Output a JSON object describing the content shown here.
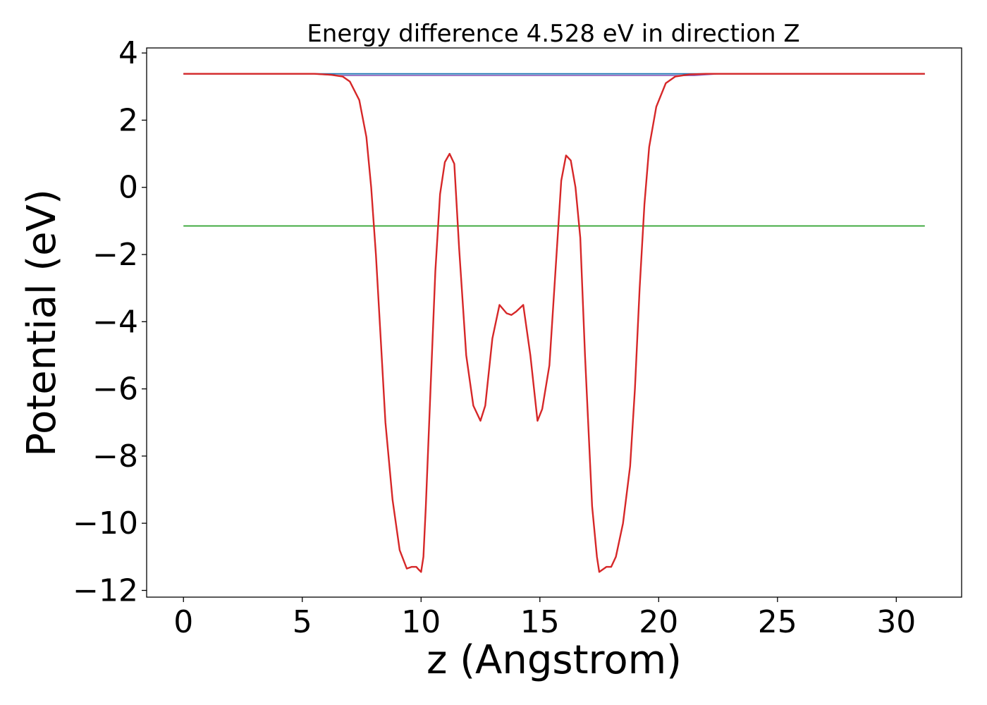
{
  "chart_data": {
    "type": "line",
    "title": "Energy difference 4.528 eV in direction Z",
    "xlabel": "z (Angstrom)",
    "ylabel": "Potential (eV)",
    "xlim": [
      -1.55,
      32.75
    ],
    "ylim": [
      -12.2,
      4.15
    ],
    "xticks": [
      0,
      5,
      10,
      15,
      20,
      25,
      30
    ],
    "yticks": [
      4,
      2,
      0,
      -2,
      -4,
      -6,
      -8,
      -10,
      -12
    ],
    "xtick_labels": [
      "0",
      "5",
      "10",
      "15",
      "20",
      "25",
      "30"
    ],
    "ytick_labels": [
      "4",
      "2",
      "0",
      "−2",
      "−4",
      "−6",
      "−8",
      "−10",
      "−12"
    ],
    "grid": false,
    "legend": "none",
    "series": [
      {
        "color": "#1f77b4",
        "x": [
          0,
          31.2
        ],
        "y": [
          3.38,
          3.38
        ]
      },
      {
        "color": "#2ca02c",
        "x": [
          0,
          31.2
        ],
        "y": [
          -1.15,
          -1.15
        ]
      },
      {
        "color": "#9467bd",
        "x": [
          0,
          5.5,
          6.5,
          21.5,
          22.5,
          31.2
        ],
        "y": [
          3.38,
          3.38,
          3.33,
          3.33,
          3.38,
          3.38
        ]
      },
      {
        "color": "#d62728",
        "x": [
          0,
          5.5,
          6.2,
          6.7,
          7.0,
          7.4,
          7.7,
          7.9,
          8.1,
          8.3,
          8.5,
          8.8,
          9.1,
          9.4,
          9.6,
          9.8,
          9.9,
          10.0,
          10.1,
          10.2,
          10.4,
          10.6,
          10.8,
          11.0,
          11.2,
          11.4,
          11.6,
          11.9,
          12.2,
          12.5,
          12.7,
          13.0,
          13.3,
          13.6,
          13.8,
          14.0,
          14.3,
          14.6,
          14.9,
          15.1,
          15.4,
          15.7,
          15.9,
          16.1,
          16.3,
          16.5,
          16.7,
          16.9,
          17.2,
          17.4,
          17.5,
          17.6,
          17.8,
          18.0,
          18.2,
          18.5,
          18.8,
          19.0,
          19.2,
          19.4,
          19.6,
          19.9,
          20.3,
          20.7,
          21.3,
          22.0,
          31.2
        ],
        "y": [
          3.38,
          3.38,
          3.35,
          3.3,
          3.15,
          2.6,
          1.5,
          0.0,
          -2.0,
          -4.5,
          -7.0,
          -9.3,
          -10.8,
          -11.35,
          -11.3,
          -11.3,
          -11.38,
          -11.45,
          -11.0,
          -9.5,
          -6.0,
          -2.5,
          -0.2,
          0.75,
          1.0,
          0.7,
          -1.8,
          -5.0,
          -6.5,
          -6.95,
          -6.5,
          -4.5,
          -3.5,
          -3.75,
          -3.8,
          -3.7,
          -3.5,
          -5.0,
          -6.95,
          -6.6,
          -5.3,
          -2.0,
          0.2,
          0.95,
          0.8,
          0.0,
          -1.5,
          -5.0,
          -9.5,
          -11.0,
          -11.45,
          -11.4,
          -11.3,
          -11.3,
          -11.0,
          -10.0,
          -8.3,
          -6.0,
          -3.0,
          -0.5,
          1.2,
          2.4,
          3.1,
          3.3,
          3.36,
          3.38,
          3.38
        ]
      }
    ]
  }
}
